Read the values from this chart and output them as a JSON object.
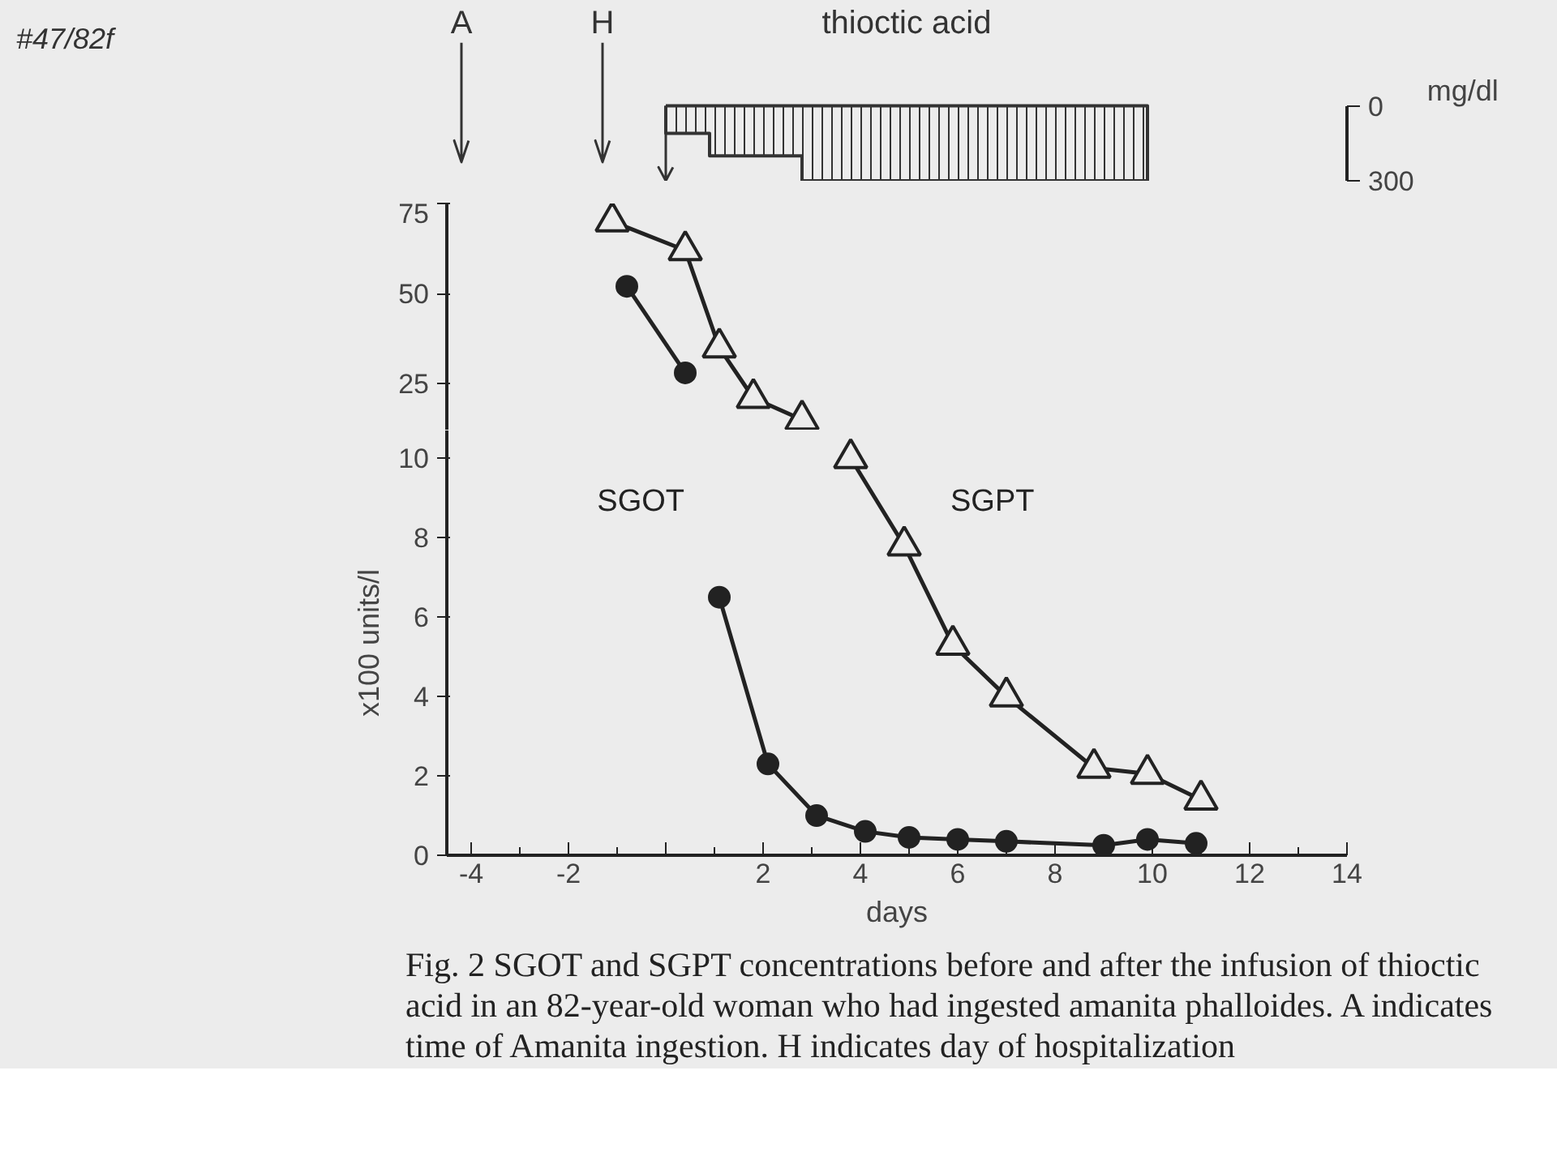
{
  "chart_data": [
    {
      "type": "area",
      "title": "thioctic acid",
      "ylabel": "mg/dl",
      "x": [
        0,
        0.9,
        0.9,
        2.8,
        2.8,
        9.9
      ],
      "values": [
        110,
        110,
        200,
        200,
        300,
        300
      ],
      "color": "#333333",
      "xlim": [
        -4.5,
        14
      ],
      "ylim": [
        300,
        0
      ],
      "yticks": [
        0,
        300
      ],
      "tick_labels": "y",
      "annotations": [
        "#47/82f"
      ],
      "ref_lines": [
        {
          "axis": "x",
          "value": -4.2,
          "label": "A"
        },
        {
          "axis": "x",
          "value": -1.3,
          "label": "H"
        },
        {
          "axis": "x",
          "value": 0
        }
      ]
    },
    {
      "type": "line",
      "xlim": [
        -4.5,
        14
      ],
      "ylim": [
        12,
        75
      ],
      "yticks": [
        25,
        50,
        75
      ],
      "tick_labels": "y",
      "series": [
        {
          "color": "#222222",
          "marker": "circle",
          "x": [
            -0.8,
            0.4
          ],
          "values": [
            52,
            28
          ]
        },
        {
          "color": "#222222",
          "marker": "triangle",
          "x": [
            -1.1,
            0.4,
            1.1,
            1.8,
            2.8
          ],
          "values": [
            70,
            62,
            35,
            21,
            15
          ]
        }
      ]
    },
    {
      "type": "line",
      "xlabel": "days",
      "ylabel": "x100 units/l",
      "xlim": [
        -4.5,
        14
      ],
      "ylim": [
        0,
        10.7
      ],
      "yticks": [
        0,
        2,
        4,
        6,
        8,
        10
      ],
      "xticks": [
        -4,
        -2,
        {
          "value": 0,
          "label": null
        },
        2,
        4,
        6,
        8,
        10,
        12,
        14
      ],
      "series": [
        {
          "name": "SGOT",
          "color": "#222222",
          "marker": "circle",
          "x": [
            1.1,
            2.1,
            3.1,
            4.1,
            5,
            6,
            7,
            9,
            9.9,
            10.9
          ],
          "values": [
            6.5,
            2.3,
            1.0,
            0.6,
            0.45,
            0.4,
            0.35,
            0.25,
            0.4,
            0.3
          ]
        },
        {
          "name": "SGPT",
          "color": "#222222",
          "marker": "triangle",
          "x": [
            3.8,
            4.9,
            5.9,
            7,
            8.8,
            9.9,
            11
          ],
          "values": [
            10,
            7.8,
            5.3,
            4,
            2.2,
            2.05,
            1.4
          ]
        }
      ],
      "annotations": [
        "Fig. 2   SGOT and SGPT concentrations before and after the infusion of thioctic acid in an 82-year-old woman who had ingested amanita phalloides. A indicates time of Amanita ingestion. H indicates day of hospitalization"
      ]
    }
  ]
}
